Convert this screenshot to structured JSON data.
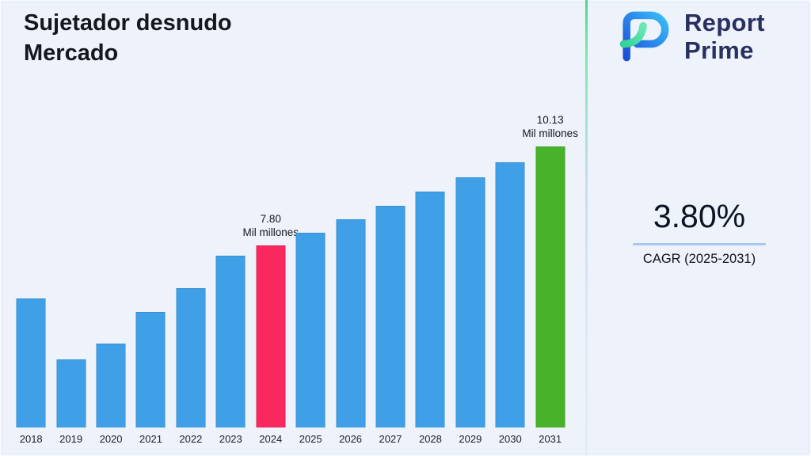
{
  "header": {
    "title_lines": [
      "Sujetador desnudo",
      "Mercado"
    ]
  },
  "logo": {
    "line1": "Report",
    "line2": "Prime",
    "navy": "#27305f",
    "blue": "#2f6fe4",
    "green": "#34d399"
  },
  "cagr": {
    "value": "3.80%",
    "label": "CAGR (2025-2031)"
  },
  "colors": {
    "background": "#EDF2FB",
    "divider_top_green": "#4FD98B",
    "cagr_underline": "#A9C7EF"
  },
  "chart_data": {
    "type": "bar",
    "title": "Sujetador desnudo Mercado",
    "unit": "Mil millones",
    "categories": [
      "2018",
      "2019",
      "2020",
      "2021",
      "2022",
      "2023",
      "2024",
      "2025",
      "2026",
      "2027",
      "2028",
      "2029",
      "2030",
      "2031"
    ],
    "values": [
      6.55,
      5.1,
      5.48,
      6.23,
      6.78,
      7.55,
      7.8,
      8.1,
      8.41,
      8.73,
      9.06,
      9.4,
      9.76,
      10.13
    ],
    "annotations": [
      {
        "year": "2024",
        "lines": [
          "7.80",
          "Mil millones"
        ]
      },
      {
        "year": "2031",
        "lines": [
          "10.13",
          "Mil millones"
        ]
      }
    ],
    "colors": {
      "default": "#3FA0E8",
      "2024": "#F9285E",
      "2031": "#48B32A"
    },
    "ylim": [
      3.5,
      10.5
    ],
    "xlabel": "",
    "ylabel": "",
    "grid": false,
    "legend": false
  }
}
